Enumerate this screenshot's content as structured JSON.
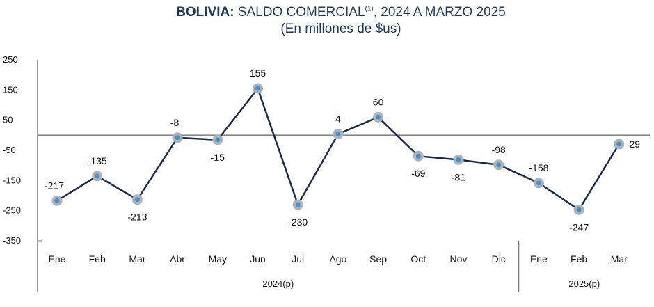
{
  "title": {
    "bold": "BOLIVIA:",
    "main": " SALDO COMERCIAL",
    "sup": "(1)",
    "rest": ", 2024 A MARZO 2025",
    "subtitle": "(En millones de $us)"
  },
  "chart_data": {
    "type": "line",
    "categories": [
      "Ene",
      "Feb",
      "Mar",
      "Abr",
      "May",
      "Jun",
      "Jul",
      "Ago",
      "Sep",
      "Oct",
      "Nov",
      "Dic",
      "Ene",
      "Feb",
      "Mar"
    ],
    "groups": [
      {
        "label": "2024(p)",
        "count": 12
      },
      {
        "label": "2025(p)",
        "count": 3
      }
    ],
    "series": [
      {
        "values": [
          -217,
          -135,
          -213,
          -8,
          -15,
          155,
          -230,
          4,
          60,
          -69,
          -81,
          -98,
          -158,
          -247,
          -29
        ]
      }
    ],
    "data_labels": [
      "-217",
      "-135",
      "-213",
      "-8",
      "-15",
      "155",
      "-230",
      "4",
      "60",
      "-69",
      "-81",
      "-98",
      "-158",
      "-247",
      "-29"
    ],
    "yticks": [
      250,
      150,
      50,
      -50,
      -150,
      -250,
      -350
    ],
    "ytick_labels": [
      "250",
      "150",
      "50",
      "-50",
      "-150",
      "-250",
      "-350"
    ],
    "ylim": [
      -350,
      250
    ],
    "grid": false,
    "colors": {
      "line": "#1b2a4a",
      "marker_outer": "#a9b3bd",
      "marker_inner": "#4a8fc4",
      "zero_line": "#888888",
      "axis": "#7a7a7a"
    }
  }
}
